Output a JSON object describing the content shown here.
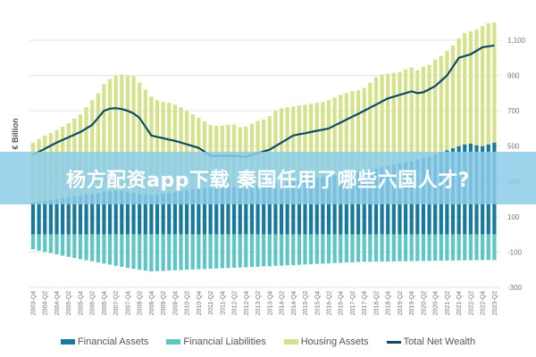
{
  "banner": {
    "text": "杨方配资app下载 秦国任用了哪些六国人才?"
  },
  "chart_data": {
    "type": "bar",
    "stacked": true,
    "ylabel": "€ Billion",
    "ylim": [
      -300,
      1200
    ],
    "yticks": [
      -300,
      -100,
      100,
      300,
      500,
      700,
      900,
      1100
    ],
    "ytick_labels": [
      "-300",
      "-100",
      "100",
      "300",
      "500",
      "700",
      "900",
      "1,100"
    ],
    "grid": true,
    "legend": "bottom",
    "x": [
      "2003-Q4",
      "2004-Q1",
      "2004-Q2",
      "2004-Q3",
      "2004-Q4",
      "2005-Q1",
      "2005-Q2",
      "2005-Q3",
      "2005-Q4",
      "2006-Q1",
      "2006-Q2",
      "2006-Q3",
      "2006-Q4",
      "2007-Q1",
      "2007-Q2",
      "2007-Q3",
      "2007-Q4",
      "2008-Q1",
      "2008-Q2",
      "2008-Q3",
      "2008-Q4",
      "2009-Q1",
      "2009-Q2",
      "2009-Q3",
      "2009-Q4",
      "2010-Q1",
      "2010-Q2",
      "2010-Q3",
      "2010-Q4",
      "2011-Q1",
      "2011-Q2",
      "2011-Q3",
      "2011-Q4",
      "2012-Q1",
      "2012-Q2",
      "2012-Q3",
      "2012-Q4",
      "2013-Q1",
      "2013-Q2",
      "2013-Q3",
      "2013-Q4",
      "2014-Q1",
      "2014-Q2",
      "2014-Q3",
      "2014-Q4",
      "2015-Q1",
      "2015-Q2",
      "2015-Q3",
      "2015-Q4",
      "2016-Q1",
      "2016-Q2",
      "2016-Q3",
      "2016-Q4",
      "2017-Q1",
      "2017-Q2",
      "2017-Q3",
      "2017-Q4",
      "2018-Q1",
      "2018-Q2",
      "2018-Q3",
      "2018-Q4",
      "2019-Q1",
      "2019-Q2",
      "2019-Q3",
      "2019-Q4",
      "2020-Q1",
      "2020-Q2",
      "2020-Q3",
      "2020-Q4",
      "2021-Q1",
      "2021-Q2",
      "2021-Q3",
      "2021-Q4",
      "2022-Q1",
      "2022-Q2",
      "2022-Q3",
      "2022-Q4",
      "2023-Q1",
      "2023-Q2"
    ],
    "series": [
      {
        "name": "Financial Assets",
        "kind": "bar",
        "color": "#17799b",
        "values": [
          180,
          185,
          190,
          195,
          200,
          205,
          210,
          215,
          220,
          225,
          230,
          235,
          240,
          245,
          250,
          245,
          240,
          235,
          230,
          225,
          220,
          225,
          230,
          235,
          240,
          245,
          250,
          255,
          260,
          262,
          263,
          265,
          267,
          268,
          270,
          272,
          273,
          275,
          277,
          278,
          280,
          285,
          290,
          295,
          300,
          305,
          310,
          315,
          320,
          325,
          330,
          335,
          340,
          345,
          350,
          355,
          360,
          367,
          374,
          381,
          388,
          395,
          402,
          409,
          416,
          423,
          430,
          442,
          453,
          465,
          477,
          488,
          500,
          510,
          515,
          505,
          500,
          510,
          520
        ]
      },
      {
        "name": "Financial Liabilities",
        "kind": "bar",
        "color": "#5ec6c4",
        "values": [
          -85,
          -92,
          -99,
          -106,
          -113,
          -120,
          -127,
          -133,
          -140,
          -146,
          -152,
          -159,
          -165,
          -171,
          -178,
          -184,
          -190,
          -195,
          -200,
          -205,
          -210,
          -208,
          -207,
          -205,
          -203,
          -202,
          -200,
          -199,
          -197,
          -196,
          -194,
          -193,
          -191,
          -190,
          -189,
          -187,
          -186,
          -184,
          -183,
          -181,
          -180,
          -178,
          -177,
          -175,
          -174,
          -172,
          -170,
          -169,
          -167,
          -166,
          -164,
          -162,
          -161,
          -159,
          -158,
          -156,
          -155,
          -155,
          -154,
          -154,
          -153,
          -153,
          -152,
          -152,
          -151,
          -151,
          -150,
          -150,
          -149,
          -149,
          -148,
          -148,
          -147,
          -147,
          -146,
          -146,
          -145,
          -145,
          -145
        ]
      },
      {
        "name": "Housing Assets",
        "kind": "bar",
        "color": "#d5e28c",
        "values": [
          340,
          355,
          370,
          380,
          390,
          405,
          420,
          440,
          460,
          495,
          530,
          565,
          610,
          635,
          650,
          660,
          660,
          660,
          630,
          595,
          560,
          535,
          520,
          510,
          495,
          475,
          450,
          425,
          400,
          378,
          357,
          350,
          348,
          353,
          352,
          335,
          338,
          352,
          365,
          373,
          390,
          415,
          425,
          425,
          425,
          425,
          425,
          425,
          425,
          425,
          430,
          440,
          450,
          455,
          460,
          460,
          470,
          493,
          516,
          524,
          522,
          520,
          518,
          526,
          529,
          507,
          520,
          518,
          537,
          545,
          563,
          582,
          610,
          630,
          635,
          655,
          680,
          685,
          680
        ]
      },
      {
        "name": "Total Net Wealth",
        "kind": "line",
        "color": "#0f4a6a",
        "values": [
          450,
          468,
          485,
          503,
          520,
          535,
          550,
          565,
          580,
          600,
          620,
          660,
          700,
          712,
          715,
          710,
          700,
          685,
          660,
          610,
          560,
          552,
          545,
          537,
          530,
          520,
          510,
          500,
          490,
          468,
          445,
          445,
          445,
          445,
          445,
          442,
          440,
          450,
          460,
          470,
          480,
          500,
          520,
          540,
          560,
          567,
          573,
          580,
          587,
          593,
          600,
          617,
          633,
          650,
          667,
          683,
          700,
          718,
          735,
          753,
          770,
          780,
          790,
          800,
          810,
          800,
          805,
          822,
          840,
          870,
          900,
          950,
          1000,
          1010,
          1020,
          1040,
          1060,
          1065,
          1070
        ]
      }
    ]
  }
}
